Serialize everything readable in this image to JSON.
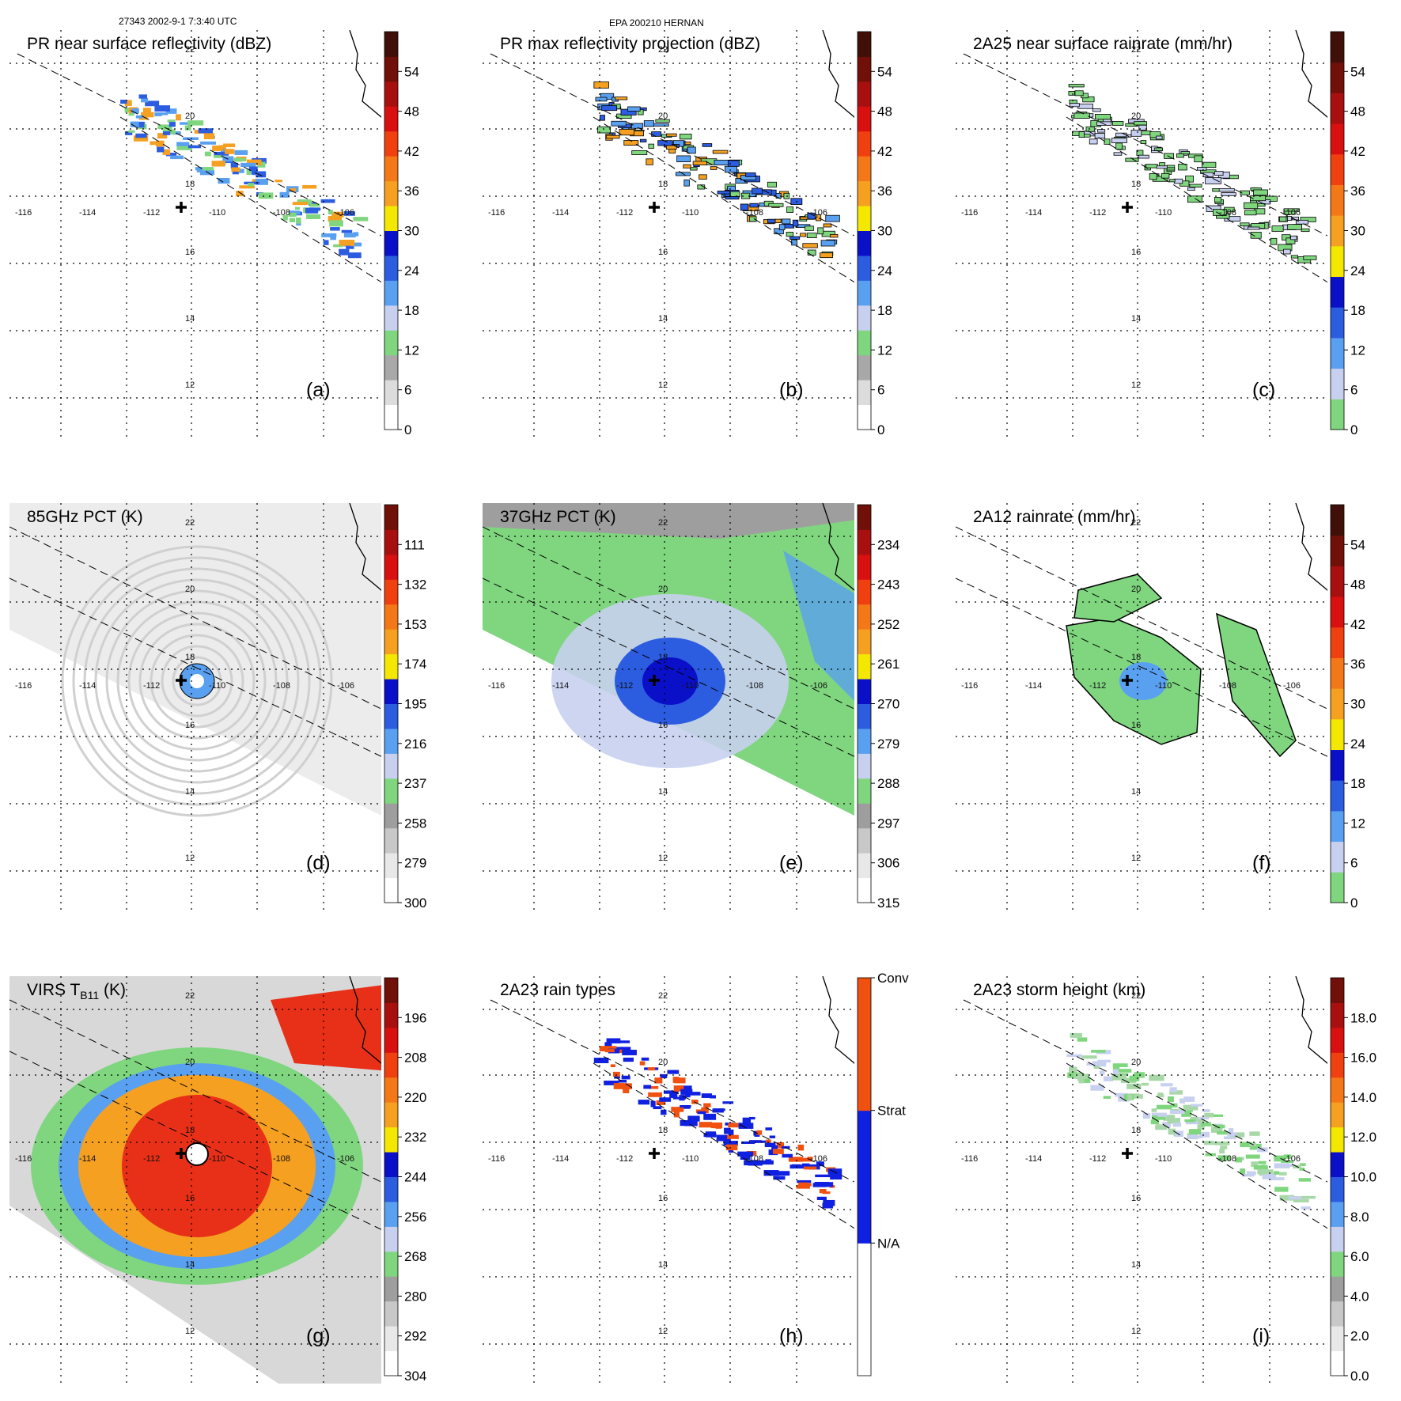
{
  "header": {
    "orbit_time": "27343 2002-9-1 7:3:40 UTC",
    "storm": "EPA 200210 HERNAN"
  },
  "lon_labels": [
    "-116",
    "-114",
    "-112",
    "-110",
    "-108",
    "-106"
  ],
  "lat_labels": [
    "22",
    "20",
    "18",
    "16",
    "14",
    "12"
  ],
  "chart_data": [
    {
      "id": "a",
      "type": "heatmap",
      "title": "PR near surface reflectivity (dBZ)",
      "label": "(a)",
      "colorbar": [
        "0",
        "6",
        "12",
        "18",
        "24",
        "30",
        "36",
        "42",
        "48",
        "54"
      ],
      "colors": [
        "#ffffff",
        "#dcdcdc",
        "#a8a8a8",
        "#7fd67f",
        "#c8d0f0",
        "#5aa0f0",
        "#2c5ce0",
        "#0a10c8",
        "#f5e800",
        "#f5a020",
        "#f57818",
        "#f04010",
        "#d81010",
        "#a81010",
        "#701008",
        "#401008"
      ],
      "field": "swath-sparse",
      "contour": false
    },
    {
      "id": "b",
      "type": "heatmap",
      "title": "PR max reflectivity projection (dBZ)",
      "label": "(b)",
      "colorbar": [
        "0",
        "6",
        "12",
        "18",
        "24",
        "30",
        "36",
        "42",
        "48",
        "54"
      ],
      "colors": [
        "#ffffff",
        "#dcdcdc",
        "#a8a8a8",
        "#7fd67f",
        "#c8d0f0",
        "#5aa0f0",
        "#2c5ce0",
        "#0a10c8",
        "#f5e800",
        "#f5a020",
        "#f57818",
        "#f04010",
        "#d81010",
        "#a81010",
        "#701008",
        "#401008"
      ],
      "field": "swath-sparse",
      "contour": true
    },
    {
      "id": "c",
      "type": "heatmap",
      "title": "2A25 near surface rainrate (mm/hr)",
      "label": "(c)",
      "colorbar": [
        "0",
        "6",
        "12",
        "18",
        "24",
        "30",
        "36",
        "42",
        "48",
        "54"
      ],
      "colors": [
        "#7fd67f",
        "#c8d0f0",
        "#5aa0f0",
        "#2c5ce0",
        "#0a10c8",
        "#f5e800",
        "#f5a020",
        "#f57818",
        "#f04010",
        "#d81010",
        "#a81010",
        "#701008",
        "#401008"
      ],
      "field": "swath-sparse",
      "contour": true
    },
    {
      "id": "d",
      "type": "heatmap",
      "title": "85GHz PCT (K)",
      "label": "(d)",
      "colorbar": [
        "300",
        "279",
        "258",
        "237",
        "216",
        "195",
        "174",
        "153",
        "132",
        "111"
      ],
      "colors": [
        "#ffffff",
        "#e8e8e8",
        "#c8c8c8",
        "#9e9e9e",
        "#7fd67f",
        "#c8d0f0",
        "#5aa0f0",
        "#2c5ce0",
        "#0a10c8",
        "#f5e800",
        "#f5a020",
        "#f57818",
        "#f04010",
        "#d81010",
        "#a81010",
        "#701008"
      ],
      "field": "tmi-gray",
      "contour": true
    },
    {
      "id": "e",
      "type": "heatmap",
      "title": "37GHz PCT (K)",
      "label": "(e)",
      "colorbar": [
        "315",
        "306",
        "297",
        "288",
        "279",
        "270",
        "261",
        "252",
        "243",
        "234"
      ],
      "colors": [
        "#ffffff",
        "#e8e8e8",
        "#c8c8c8",
        "#9e9e9e",
        "#7fd67f",
        "#c8d0f0",
        "#5aa0f0",
        "#2c5ce0",
        "#0a10c8",
        "#f5e800",
        "#f5a020",
        "#f57818",
        "#f04010",
        "#d81010",
        "#a81010",
        "#701008"
      ],
      "field": "tmi-green",
      "contour": false
    },
    {
      "id": "f",
      "type": "heatmap",
      "title": "2A12 rainrate (mm/hr)",
      "label": "(f)",
      "colorbar": [
        "0",
        "6",
        "12",
        "18",
        "24",
        "30",
        "36",
        "42",
        "48",
        "54"
      ],
      "colors": [
        "#7fd67f",
        "#c8d0f0",
        "#5aa0f0",
        "#2c5ce0",
        "#0a10c8",
        "#f5e800",
        "#f5a020",
        "#f57818",
        "#f04010",
        "#d81010",
        "#a81010",
        "#701008",
        "#401008"
      ],
      "field": "tmi-rain",
      "contour": true
    },
    {
      "id": "g",
      "type": "heatmap",
      "title": "VIRS T",
      "title_sub": "B11",
      "title_unit": " (K)",
      "label": "(g)",
      "colorbar": [
        "304",
        "292",
        "280",
        "268",
        "256",
        "244",
        "232",
        "220",
        "208",
        "196"
      ],
      "colors": [
        "#ffffff",
        "#e8e8e8",
        "#c8c8c8",
        "#9e9e9e",
        "#7fd67f",
        "#c8d0f0",
        "#5aa0f0",
        "#2c5ce0",
        "#0a10c8",
        "#f5e800",
        "#f5a020",
        "#f57818",
        "#f04010",
        "#d81010",
        "#a81010",
        "#701008"
      ],
      "field": "virs",
      "contour": true
    },
    {
      "id": "h",
      "type": "heatmap",
      "title": "2A23 rain types",
      "label": "(h)",
      "colorbar_categorical": [
        "N/A",
        "Strat",
        "Conv"
      ],
      "colors": [
        "#ffffff",
        "#1020e0",
        "#f05010"
      ],
      "field": "swath-sparse",
      "contour": false
    },
    {
      "id": "i",
      "type": "heatmap",
      "title": "2A23 storm height (km)",
      "label": "(i)",
      "colorbar": [
        "0.0",
        "2.0",
        "4.0",
        "6.0",
        "8.0",
        "10.0",
        "12.0",
        "14.0",
        "16.0",
        "18.0"
      ],
      "colors": [
        "#ffffff",
        "#e8e8e8",
        "#c8c8c8",
        "#9e9e9e",
        "#7fd67f",
        "#c8d0f0",
        "#5aa0f0",
        "#2c5ce0",
        "#0a10c8",
        "#f5e800",
        "#f5a020",
        "#f57818",
        "#f04010",
        "#d81010",
        "#a81010",
        "#701008"
      ],
      "field": "swath-sparse-light",
      "contour": false
    }
  ]
}
